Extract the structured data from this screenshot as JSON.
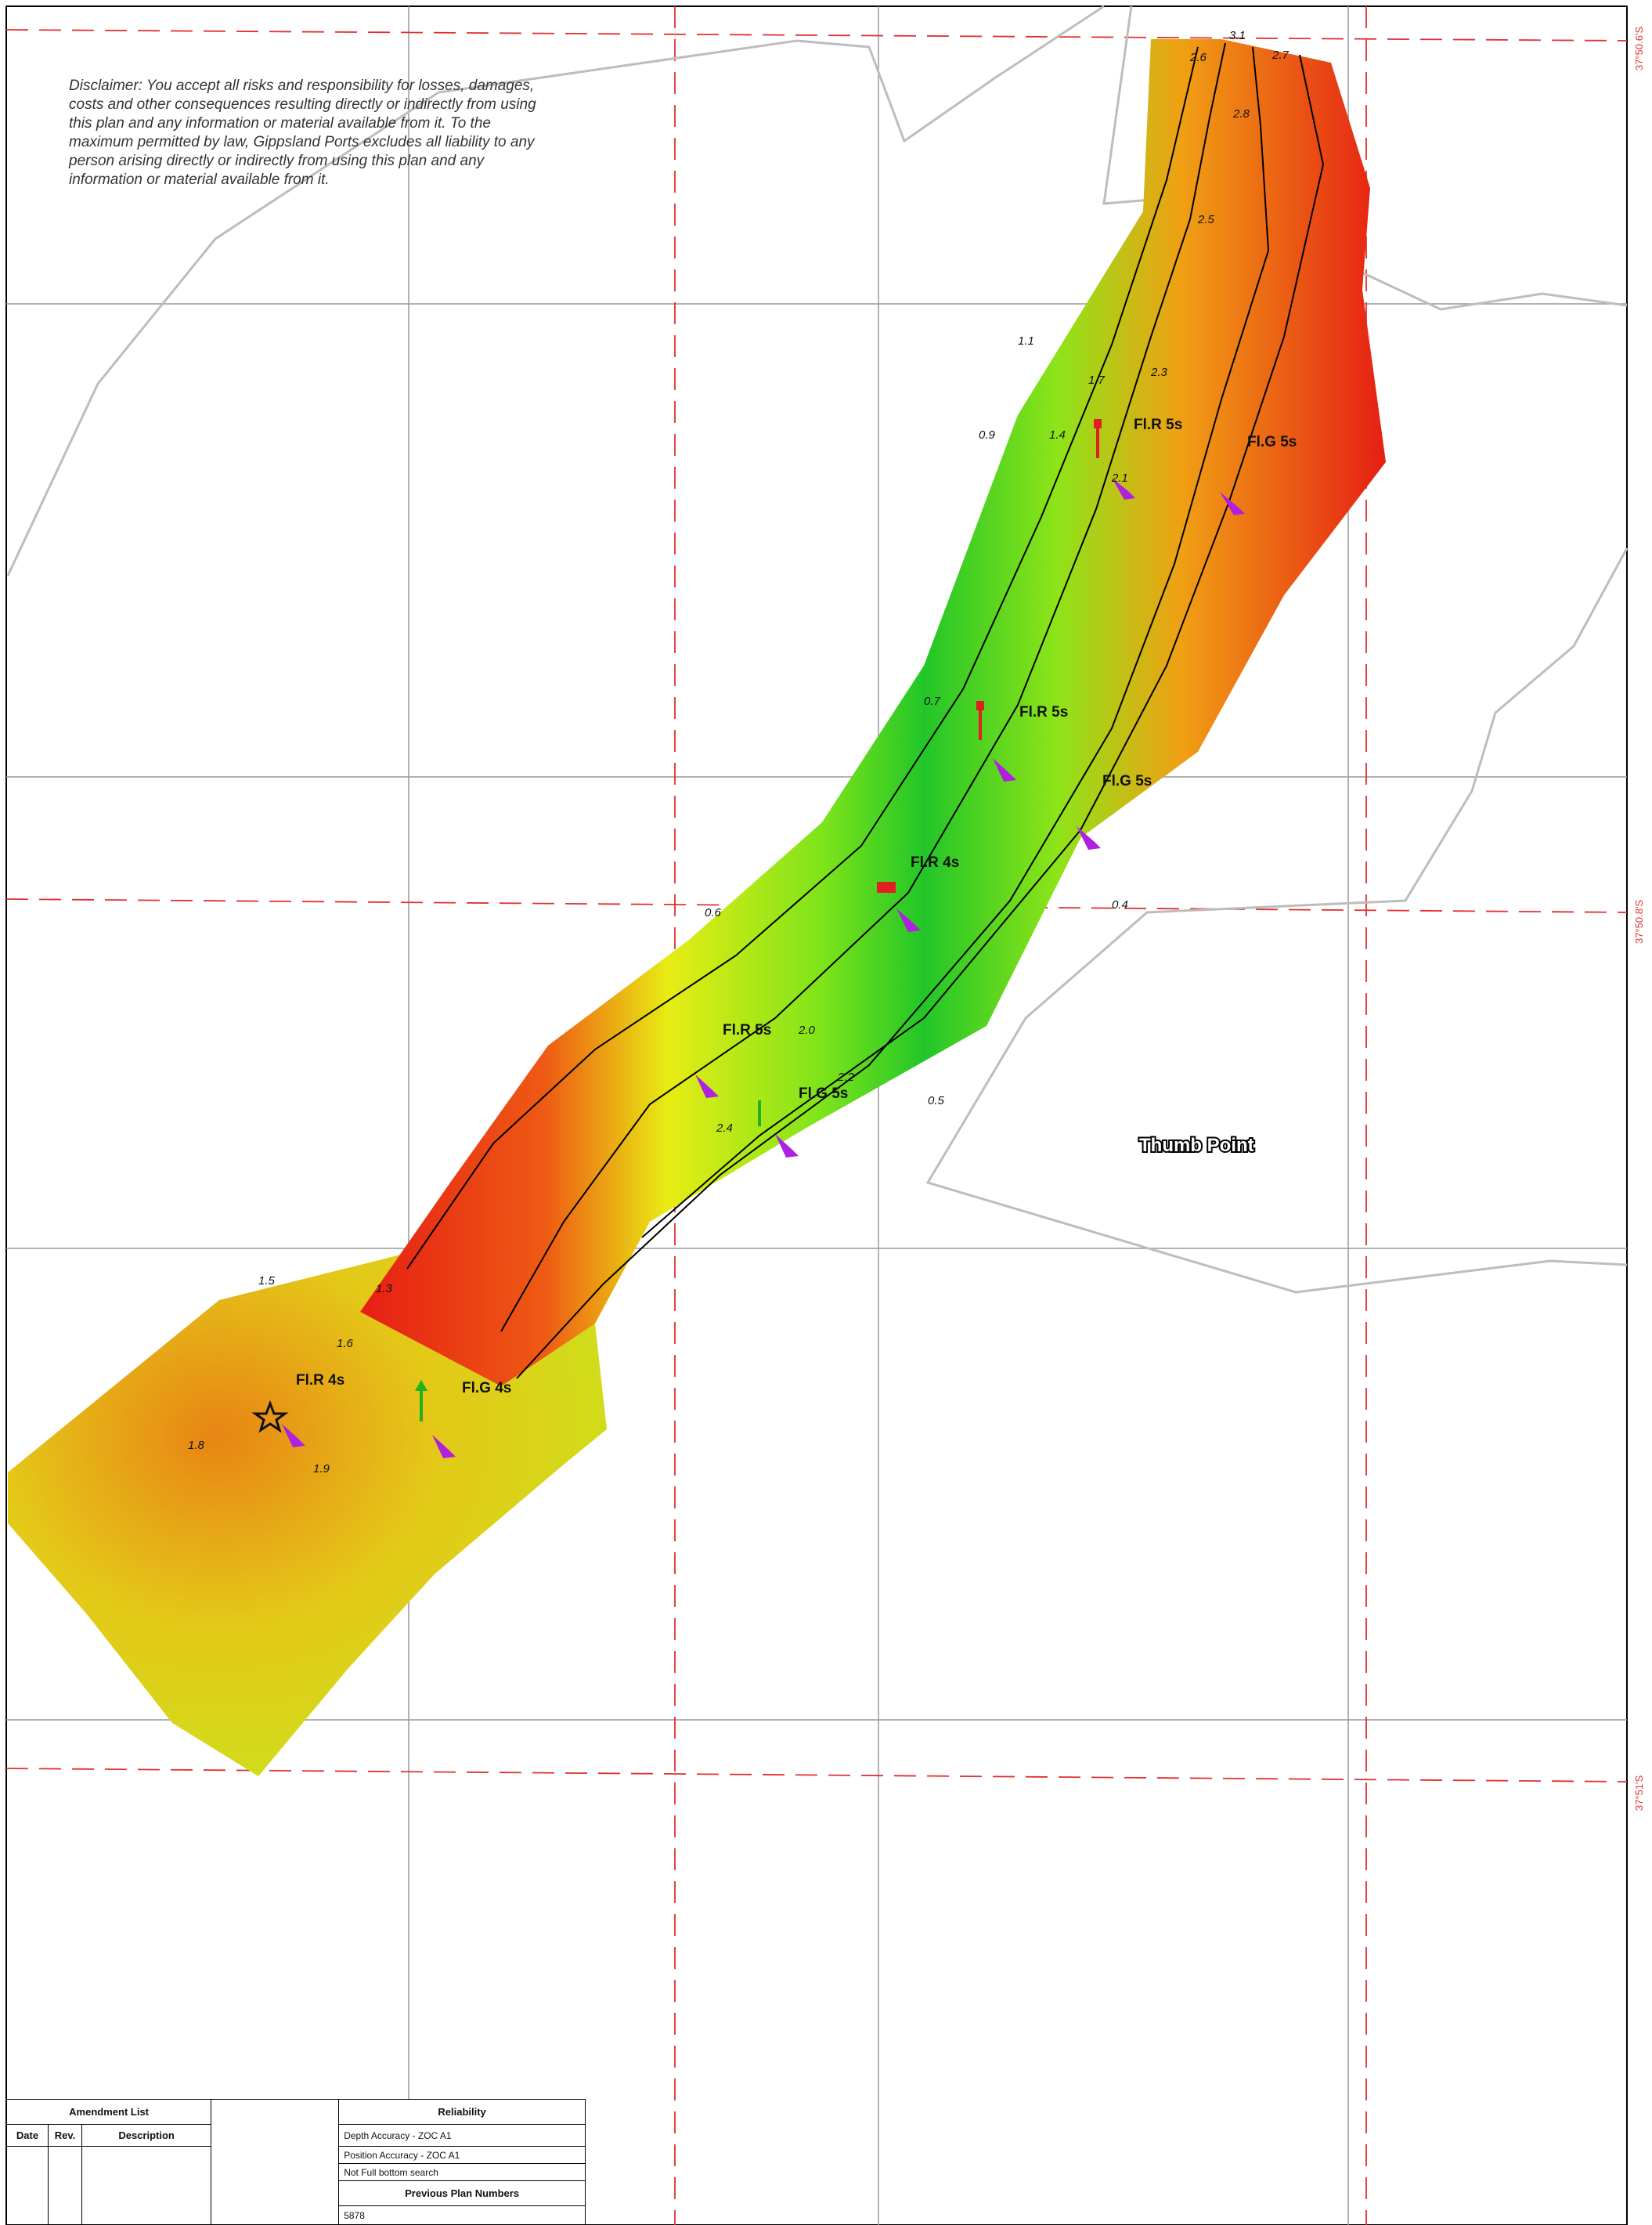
{
  "disclaimer": "Disclaimer:  You accept all risks and responsibility for losses, damages, costs and other consequences resulting directly or indirectly from using this plan and any information or material available from it.  To the maximum permitted by law, Gippsland Ports excludes all liability to any person arising directly or indirectly from using this plan and any information or material available from it.",
  "place_label": "Thumb Point",
  "latitude_labels": [
    "37°50.6'S",
    "37°50.8'S",
    "37°51'S"
  ],
  "buoys": [
    {
      "label": "Fl.R 5s",
      "color": "#e02020"
    },
    {
      "label": "Fl.G 5s",
      "color": "#20b020"
    },
    {
      "label": "Fl.R 5s",
      "color": "#e02020"
    },
    {
      "label": "Fl.G 5s",
      "color": "#20b020"
    },
    {
      "label": "Fl.R 4s",
      "color": "#e02020"
    },
    {
      "label": "Fl.R 5s",
      "color": "#e02020"
    },
    {
      "label": "Fl.G 5s",
      "color": "#20b020"
    },
    {
      "label": "Fl.R 4s",
      "color": "#111111"
    },
    {
      "label": "Fl.G 4s",
      "color": "#20b020"
    }
  ],
  "depth_soundings": [
    "3.1",
    "2.7",
    "2.6",
    "2.8",
    "2.5",
    "2.3",
    "2.1",
    "1.7",
    "1.4",
    "1.1",
    "0.9",
    "0.7",
    "0.5",
    "1.9",
    "1.8",
    "1.6",
    "2.0",
    "2.2",
    "2.4",
    "1.5",
    "1.3",
    "0.6",
    "0.4"
  ],
  "colors": {
    "shallow": "#e61e14",
    "mid": "#e8ec14",
    "deep": "#22c628",
    "accent_pointer": "#b020e0"
  },
  "amendment_table": {
    "title": "Amendment List",
    "columns": [
      "Date",
      "Rev.",
      "Description"
    ]
  },
  "reliability_table": {
    "title": "Reliability",
    "rows": [
      "Depth Accuracy - ZOC A1",
      "Position Accuracy - ZOC A1",
      "Not Full bottom search"
    ],
    "previous_title": "Previous Plan Numbers",
    "previous_value": "5878"
  }
}
